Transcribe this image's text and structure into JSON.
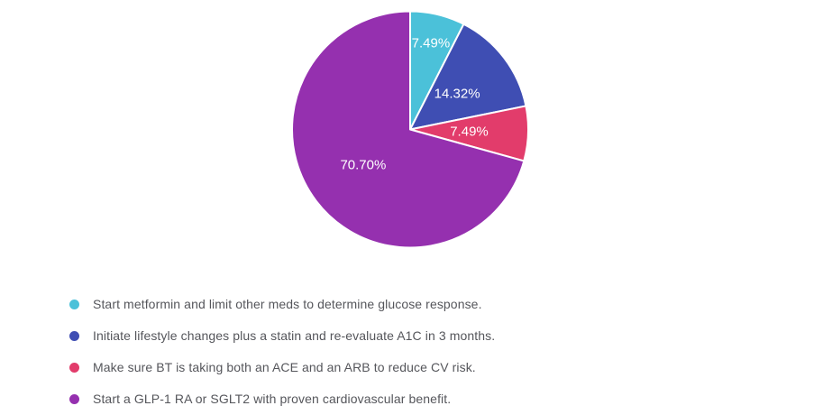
{
  "page": {
    "background_color": "#ffffff"
  },
  "chart_data": {
    "type": "pie",
    "title": "",
    "start_angle": "top",
    "direction": "clockwise",
    "slice_border_color": "#ffffff",
    "label_color": "#ffffff",
    "legend_position": "bottom-left",
    "slices": [
      {
        "legend_label": "Start metformin and limit other meds to determine glucose response.",
        "value": 7.49,
        "display": "7.49%",
        "color": "#4bc1d9",
        "label_radius_factor": 0.75
      },
      {
        "legend_label": "Initiate lifestyle changes plus a statin and re-evaluate A1C in 3 months.",
        "value": 14.32,
        "display": "14.32%",
        "color": "#3f4eb3",
        "label_radius_factor": 0.5
      },
      {
        "legend_label": "Make sure BT is taking both an ACE and an ARB to reduce CV risk.",
        "value": 7.49,
        "display": "7.49%",
        "color": "#e23c6b",
        "label_radius_factor": 0.5
      },
      {
        "legend_label": "Start a GLP-1 RA or SGLT2 with proven cardiovascular benefit.",
        "value": 70.7,
        "display": "70.70%",
        "color": "#9530af",
        "label_radius_factor": 0.5
      }
    ]
  }
}
